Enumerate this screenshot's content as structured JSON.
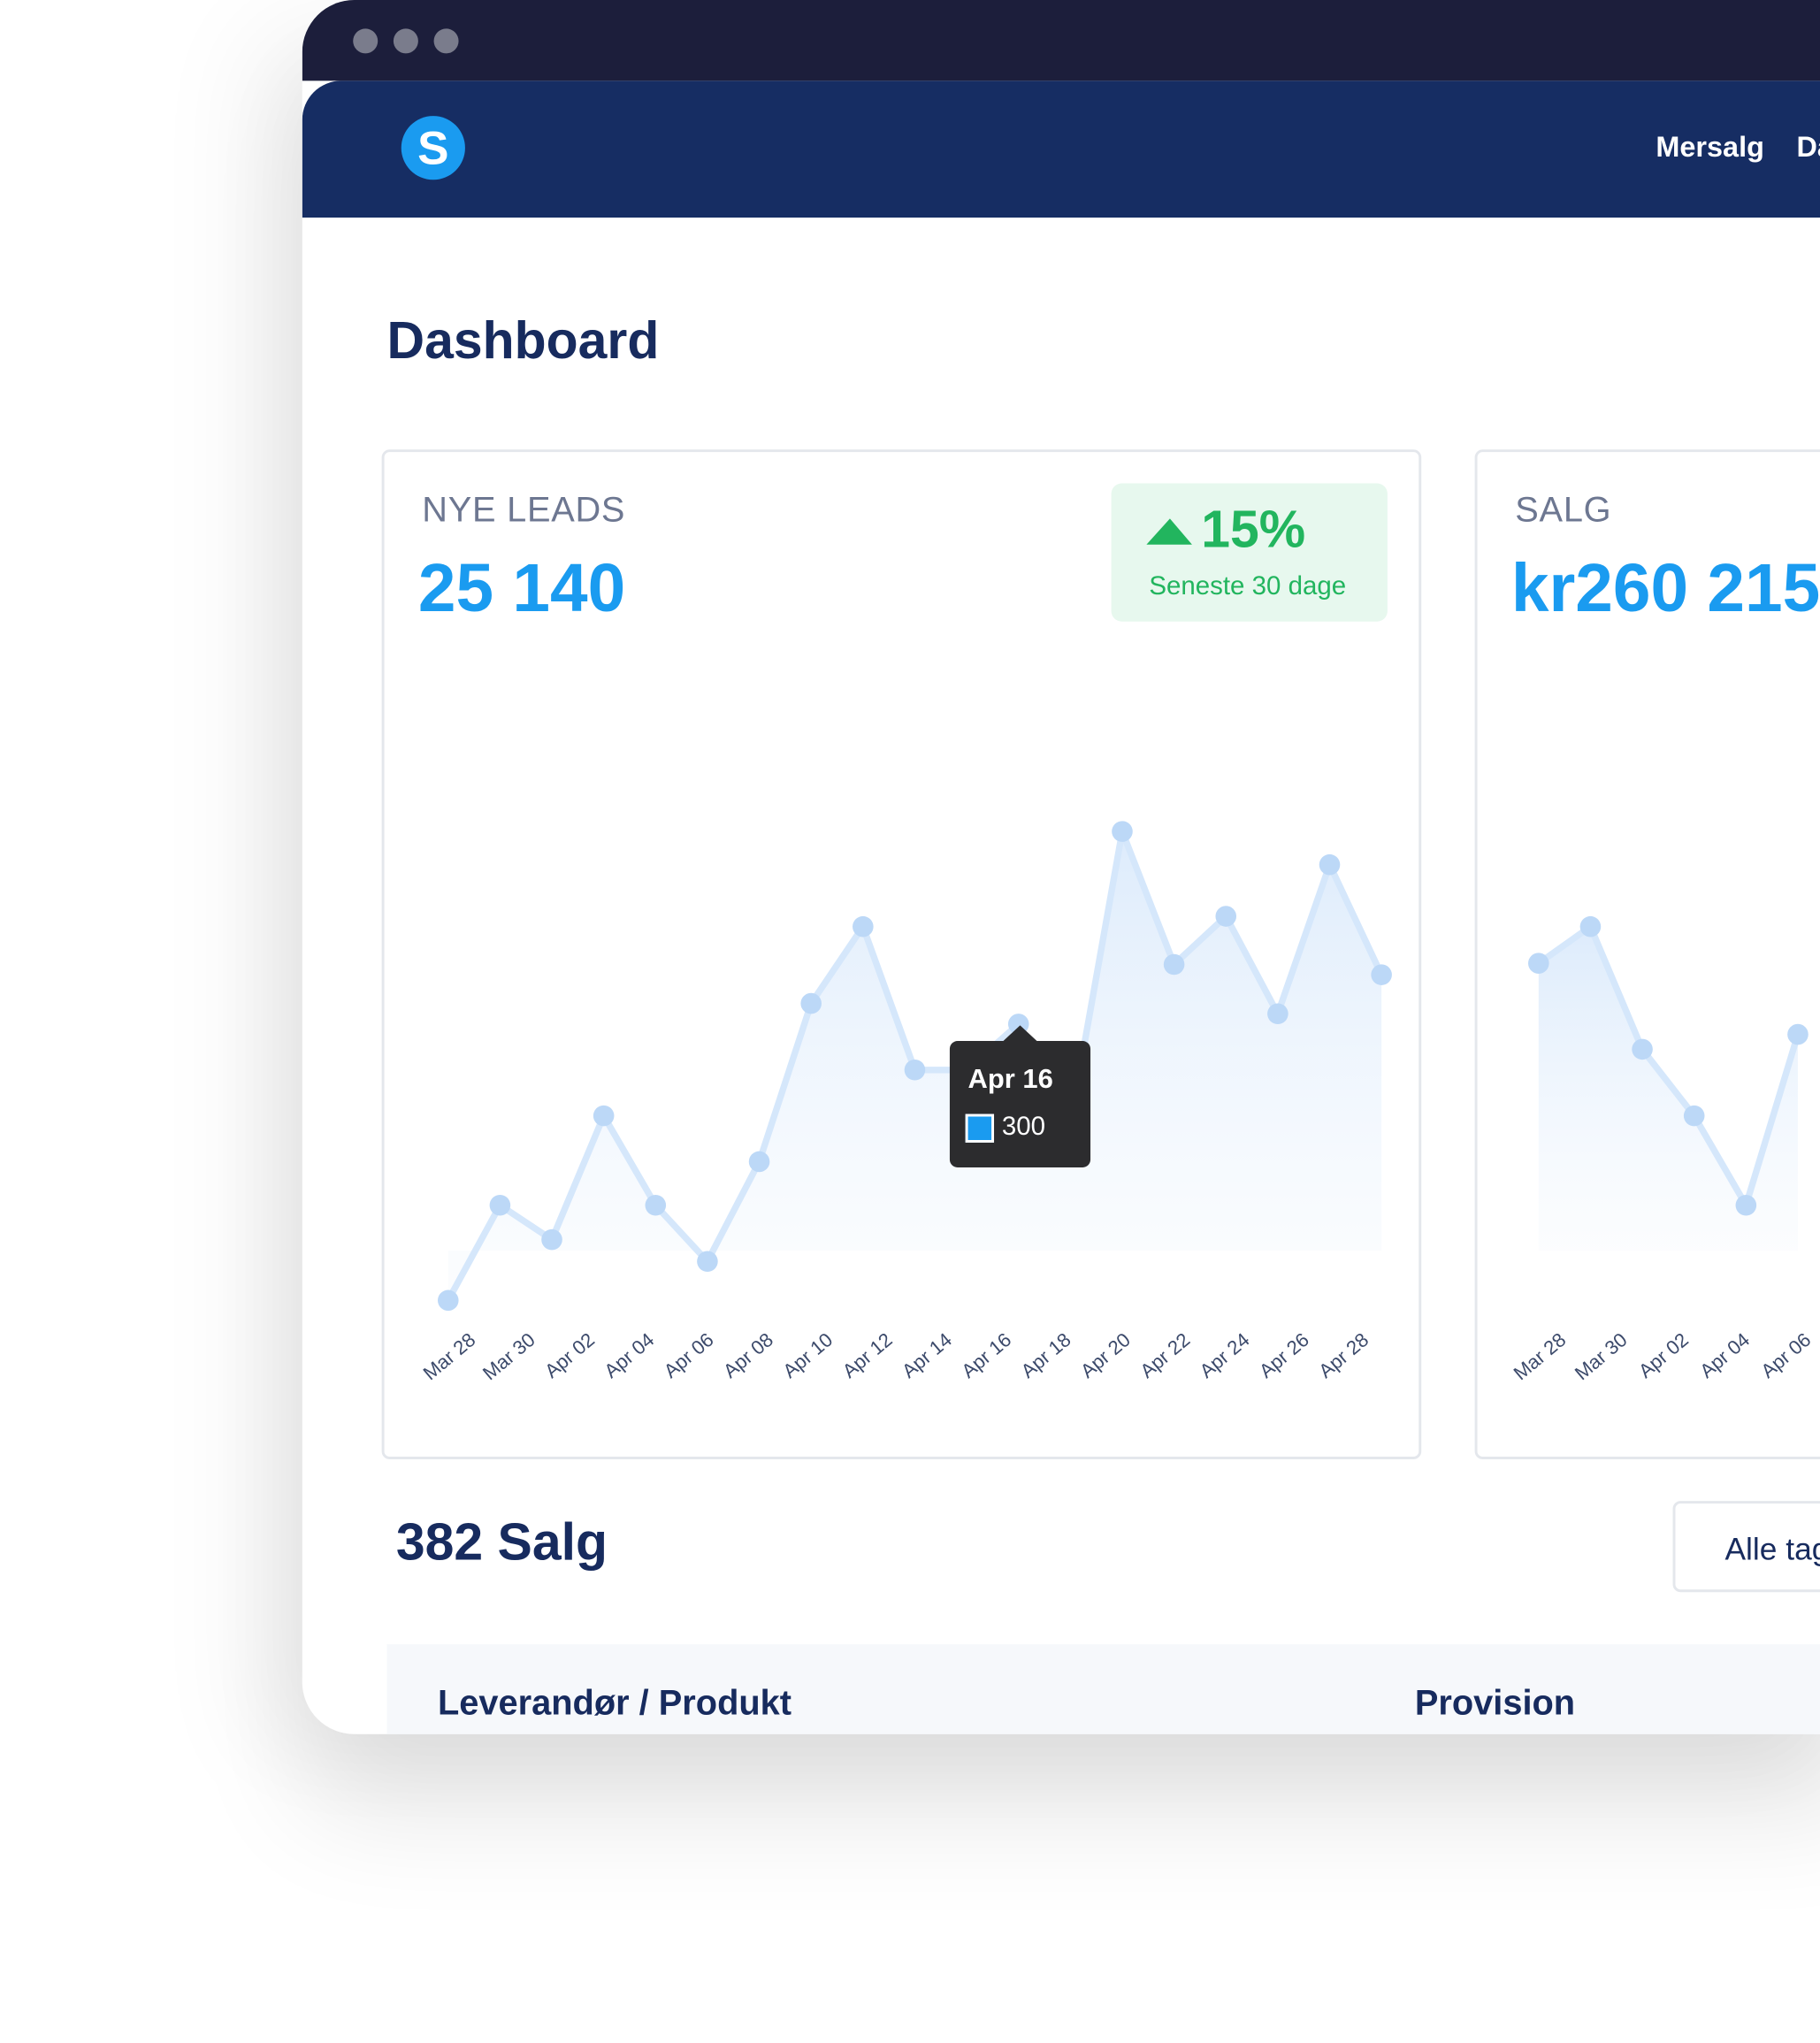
{
  "nav": {
    "logo": "S",
    "links": [
      "Mersalg",
      "Da"
    ]
  },
  "page_title": "Dashboard",
  "cards": [
    {
      "label": "NYE LEADS",
      "total": "25 140",
      "badge": {
        "change": "15%",
        "period": "Seneste 30 dage"
      },
      "chart_data": {
        "type": "area",
        "color": "#bcd8f7",
        "ylim": [
          0,
          500
        ],
        "xtick_labels": [
          "Mar 28",
          "Mar 30",
          "Apr 02",
          "Apr 04",
          "Apr 06",
          "Apr 08",
          "Apr 10",
          "Apr 12",
          "Apr 14",
          "Apr 16",
          "Apr 18",
          "Apr 20",
          "Apr 22",
          "Apr 24",
          "Apr 26",
          "Apr 28"
        ],
        "values": [
          59,
          142,
          112,
          220,
          142,
          93,
          180,
          318,
          385,
          260,
          260,
          300,
          214,
          468,
          352,
          394,
          309,
          439,
          343
        ]
      }
    },
    {
      "label": "SALG",
      "total": "kr260 215",
      "chart_data": {
        "type": "area",
        "color": "#bcd8f7",
        "ylim": [
          0,
          500
        ],
        "xtick_labels": [
          "Mar 28",
          "Mar 30",
          "Apr 02",
          "Apr 04",
          "Apr 06"
        ],
        "values": [
          353,
          385,
          278,
          220,
          142,
          291
        ]
      }
    }
  ],
  "sales_count": "382 Salg",
  "filter_button": "Alle tag",
  "table": {
    "headers": [
      "Leverandør / Produkt",
      "Provision"
    ]
  }
}
